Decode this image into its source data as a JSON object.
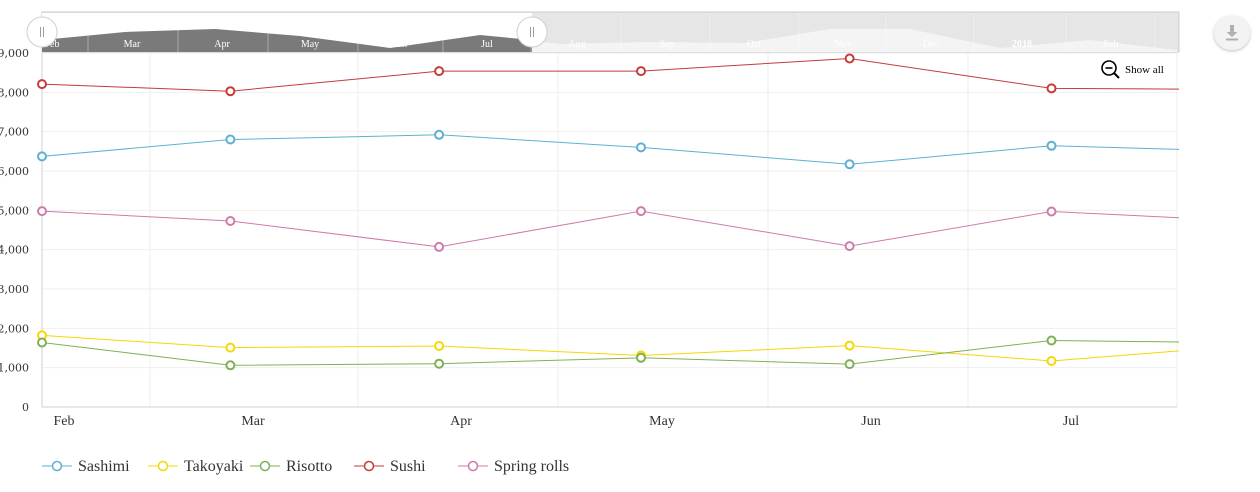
{
  "chart_data": {
    "type": "line",
    "x": [
      "2017-02-01",
      "2017-03-01",
      "2017-04-01",
      "2017-05-01",
      "2017-06-01",
      "2017-07-01",
      "2017-08-01"
    ],
    "xticks": [
      "Feb",
      "Mar",
      "Apr",
      "May",
      "Jun",
      "Jul"
    ],
    "yticks": [
      "0",
      "1,000",
      "2,000",
      "3,000",
      "4,000",
      "5,000",
      "6,000",
      "7,000",
      "8,000",
      "9,000"
    ],
    "ylim": [
      0,
      9000
    ],
    "grid": true,
    "legend_position": "bottom-left",
    "series": [
      {
        "name": "Sashimi",
        "color": "#5cb0d4",
        "values": [
          6370,
          6800,
          6920,
          6600,
          6170,
          6640,
          6490
        ]
      },
      {
        "name": "Takoyaki",
        "color": "#f5d800",
        "values": [
          1820,
          1510,
          1550,
          1310,
          1560,
          1170,
          1590
        ]
      },
      {
        "name": "Risotto",
        "color": "#7fb056",
        "values": [
          1640,
          1060,
          1100,
          1250,
          1090,
          1690,
          1630
        ]
      },
      {
        "name": "Sushi",
        "color": "#c43b3b",
        "values": [
          8210,
          8030,
          8540,
          8540,
          8860,
          8100,
          8070
        ]
      },
      {
        "name": "Spring rolls",
        "color": "#cf7aab",
        "values": [
          4980,
          4730,
          4070,
          4980,
          4090,
          4970,
          4710
        ]
      }
    ]
  },
  "navigator": {
    "labels": [
      "Feb",
      "Mar",
      "Apr",
      "May",
      "Jun",
      "Jul",
      "Aug",
      "Sep",
      "Oct",
      "Nov",
      "Dec",
      "2018",
      "Feb"
    ],
    "bold_label": "2018"
  },
  "toolbar": {
    "show_all_label": "Show all",
    "zoom_icon": "zoom-out-icon",
    "download_icon": "download-icon"
  }
}
